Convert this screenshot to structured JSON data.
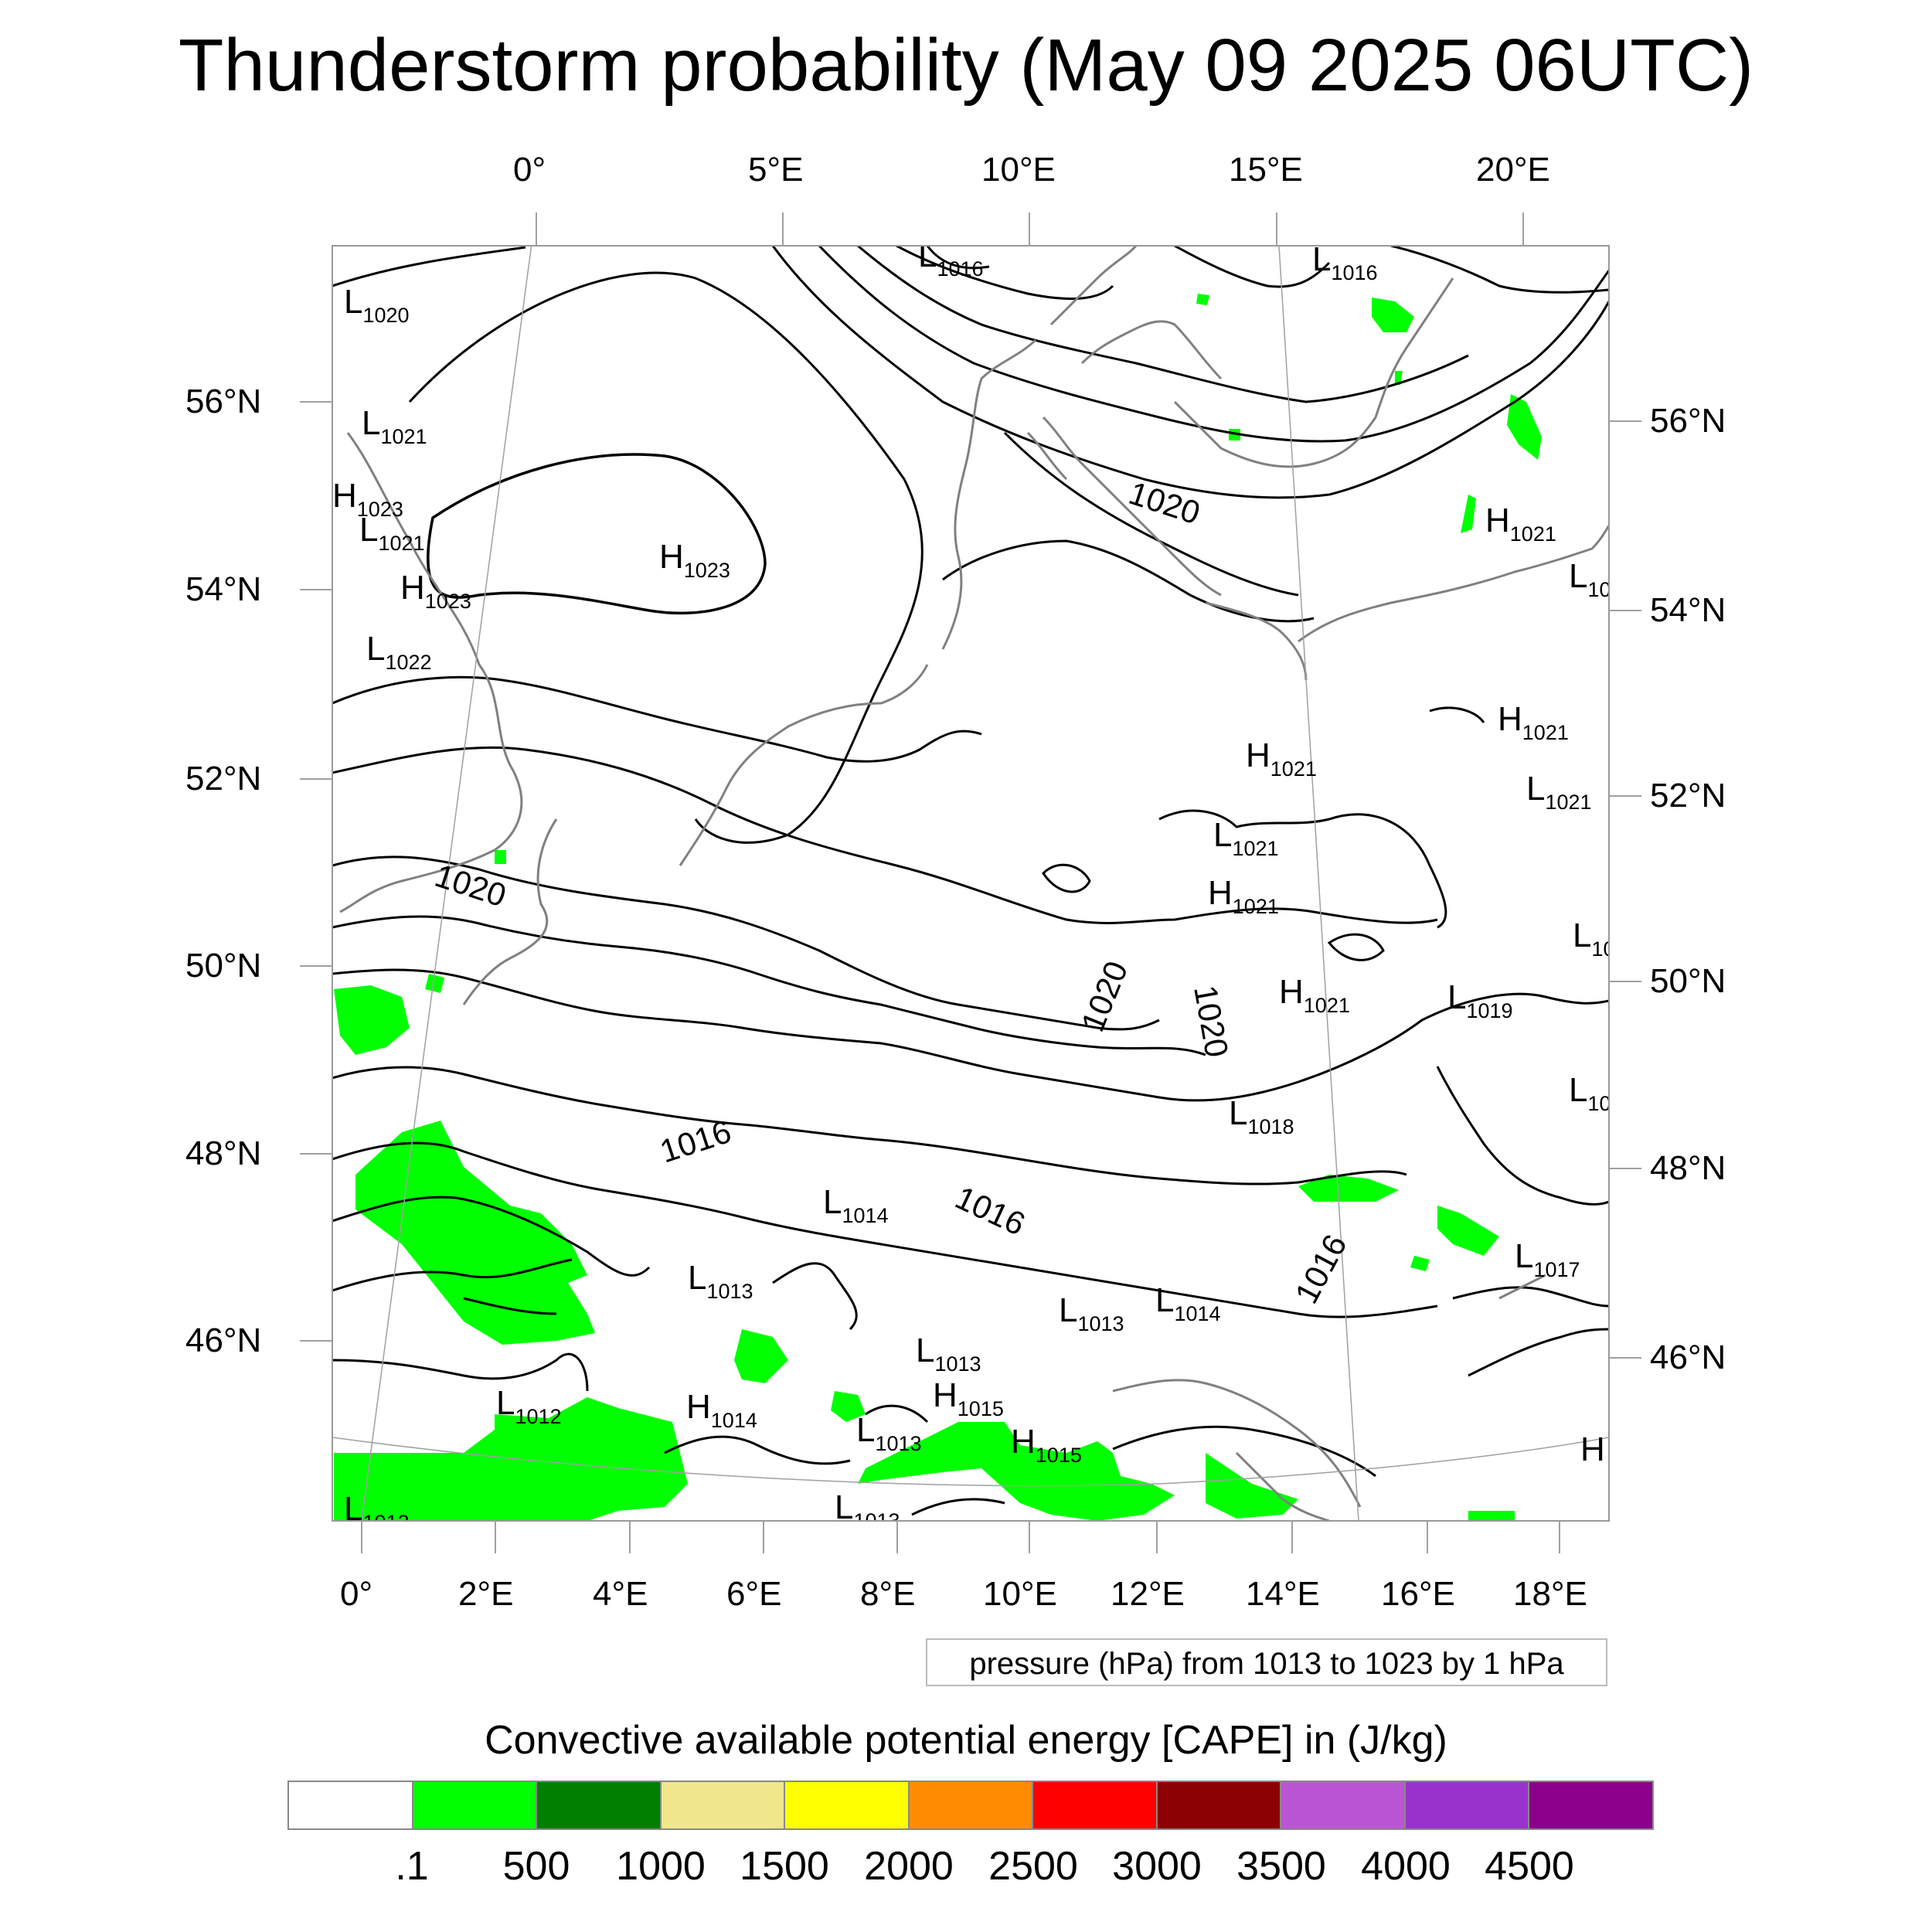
{
  "title": "Thunderstorm probability (May 09 2025 06UTC)",
  "map_region": "Western and Central Europe",
  "axes": {
    "top": [
      "0°",
      "5°E",
      "10°E",
      "15°E",
      "20°E"
    ],
    "bottom": [
      "0°",
      "2°E",
      "4°E",
      "6°E",
      "8°E",
      "10°E",
      "12°E",
      "14°E",
      "16°E",
      "18°E"
    ],
    "left": [
      "56°N",
      "54°N",
      "52°N",
      "50°N",
      "48°N",
      "46°N"
    ],
    "right": [
      "56°N",
      "54°N",
      "52°N",
      "50°N",
      "48°N",
      "46°N"
    ]
  },
  "pressure_note": "pressure (hPa) from 1013 to 1023 by 1 hPa",
  "pressure_labels": [
    {
      "text": "L",
      "sub": "1016"
    },
    {
      "text": "L",
      "sub": "1016"
    },
    {
      "text": "L",
      "sub": "1020"
    },
    {
      "text": "L",
      "sub": "1021"
    },
    {
      "text": "H",
      "sub": "1023"
    },
    {
      "text": "L",
      "sub": "1021"
    },
    {
      "text": "H",
      "sub": "1023"
    },
    {
      "text": "L",
      "sub": "1022"
    },
    {
      "text": "H",
      "sub": "1023"
    },
    {
      "text": "H",
      "sub": "1021"
    },
    {
      "text": "L",
      "sub": "10"
    },
    {
      "text": "H",
      "sub": "1021"
    },
    {
      "text": "H",
      "sub": "1021"
    },
    {
      "text": "L",
      "sub": "1021"
    },
    {
      "text": "L",
      "sub": "1021"
    },
    {
      "text": "H",
      "sub": "1021"
    },
    {
      "text": "L",
      "sub": "10"
    },
    {
      "text": "H",
      "sub": "1021"
    },
    {
      "text": "L",
      "sub": "1019"
    },
    {
      "text": "L",
      "sub": "10"
    },
    {
      "text": "L",
      "sub": "1018"
    },
    {
      "text": "L",
      "sub": "1014"
    },
    {
      "text": "L",
      "sub": "1013"
    },
    {
      "text": "L",
      "sub": "1017"
    },
    {
      "text": "L",
      "sub": "1013"
    },
    {
      "text": "L",
      "sub": "1014"
    },
    {
      "text": "L",
      "sub": "1013"
    },
    {
      "text": "L",
      "sub": "1012"
    },
    {
      "text": "H",
      "sub": "1014"
    },
    {
      "text": "H",
      "sub": "1015"
    },
    {
      "text": "L",
      "sub": "1013"
    },
    {
      "text": "H",
      "sub": "1015"
    },
    {
      "text": "L",
      "sub": "1013"
    },
    {
      "text": "L",
      "sub": "1012"
    },
    {
      "text": "H",
      "sub": ""
    }
  ],
  "contour_labels": [
    "1020",
    "1020",
    "1020",
    "1020",
    "1016",
    "1016",
    "1016"
  ],
  "colors": {
    "contour": "#000000",
    "coastline": "#808080",
    "grid": "#a0a0a0",
    "cape_fill": "#00ff00"
  },
  "colorbar": {
    "title": "Convective available potential energy [CAPE] in (J/kg)",
    "colors": [
      "#ffffff",
      "#00ff00",
      "#008000",
      "#f0e68c",
      "#ffff00",
      "#ff8c00",
      "#ff0000",
      "#8b0000",
      "#ba55d3",
      "#9932cc",
      "#8b008b"
    ],
    "labels": [
      ".1",
      "500",
      "1000",
      "1500",
      "2000",
      "2500",
      "3000",
      "3500",
      "4000",
      "4500"
    ]
  }
}
